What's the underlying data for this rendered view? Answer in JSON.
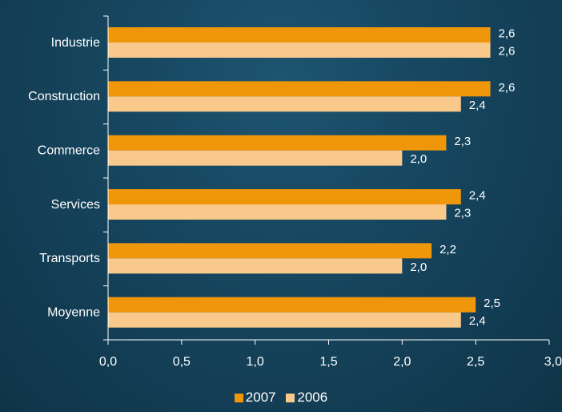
{
  "chart_data": {
    "type": "bar",
    "orientation": "horizontal",
    "categories": [
      "Industrie",
      "Construction",
      "Commerce",
      "Services",
      "Transports",
      "Moyenne"
    ],
    "series": [
      {
        "name": "2007",
        "values": [
          2.6,
          2.6,
          2.3,
          2.4,
          2.2,
          2.5
        ],
        "labels": [
          "2,6",
          "2,6",
          "2,3",
          "2,4",
          "2,2",
          "2,5"
        ]
      },
      {
        "name": "2006",
        "values": [
          2.6,
          2.4,
          2.0,
          2.3,
          2.0,
          2.4
        ],
        "labels": [
          "2,6",
          "2,4",
          "2,0",
          "2,3",
          "2,0",
          "2,4"
        ]
      }
    ],
    "xlim": [
      0,
      3
    ],
    "x_ticks": [
      0,
      0.5,
      1,
      1.5,
      2,
      2.5,
      3
    ],
    "x_tick_labels": [
      "0,0",
      "0,5",
      "1,0",
      "1,5",
      "2,0",
      "2,5",
      "3,0"
    ],
    "grid": false,
    "legend_position": "bottom",
    "colors": {
      "2007": "#f0960a",
      "2006": "#f8c98a",
      "axis": "#ffffff",
      "text": "#ffffff"
    }
  }
}
